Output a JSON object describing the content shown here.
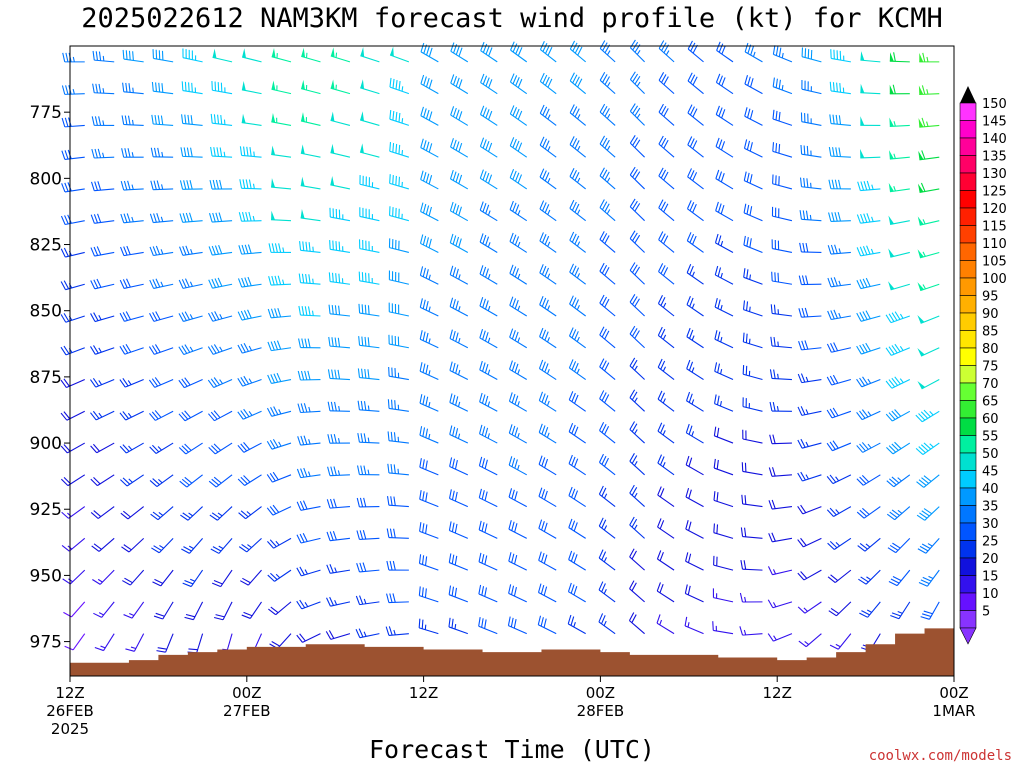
{
  "chart_data": {
    "type": "wind-barb-time-height",
    "title": "2025022612 NAM3KM forecast wind profile (kt) for KCMH",
    "xlabel": "Forecast Time (UTC)",
    "ylabel": "",
    "units": "kt",
    "credit": "coolwx.com/models",
    "x_range_hours": [
      0,
      36
    ],
    "y_range_hpa": [
      750,
      988
    ],
    "y_ticks": [
      {
        "label": "775",
        "value": 775
      },
      {
        "label": "800",
        "value": 800
      },
      {
        "label": "825",
        "value": 825
      },
      {
        "label": "850",
        "value": 850
      },
      {
        "label": "875",
        "value": 875
      },
      {
        "label": "900",
        "value": 900
      },
      {
        "label": "925",
        "value": 925
      },
      {
        "label": "950",
        "value": 950
      },
      {
        "label": "975",
        "value": 975
      }
    ],
    "x_ticks": [
      {
        "hour": 0,
        "lines": [
          "12Z",
          "26FEB",
          "2025"
        ]
      },
      {
        "hour": 7.2,
        "lines": [
          "00Z",
          "27FEB"
        ]
      },
      {
        "hour": 14.4,
        "lines": [
          "12Z"
        ]
      },
      {
        "hour": 21.6,
        "lines": [
          "00Z",
          "28FEB"
        ]
      },
      {
        "hour": 28.8,
        "lines": [
          "12Z"
        ]
      },
      {
        "hour": 36,
        "lines": [
          "00Z",
          "1MAR"
        ]
      }
    ],
    "colorbar_labels": [
      "150",
      "145",
      "140",
      "135",
      "130",
      "125",
      "120",
      "115",
      "110",
      "105",
      "100",
      "95",
      "90",
      "85",
      "80",
      "75",
      "70",
      "65",
      "60",
      "55",
      "50",
      "45",
      "40",
      "35",
      "30",
      "25",
      "20",
      "15",
      "10",
      "5"
    ],
    "colorbar_colors": [
      "#ff33ff",
      "#ff00cc",
      "#ff0099",
      "#ff0066",
      "#ff0033",
      "#ff0000",
      "#ff2000",
      "#ff4000",
      "#ff6600",
      "#ff8000",
      "#ff9900",
      "#ffb000",
      "#ffcc00",
      "#ffe600",
      "#ffff00",
      "#ccff33",
      "#66ff33",
      "#33ee33",
      "#00dd44",
      "#00f0a0",
      "#00e0d0",
      "#00ccff",
      "#0099ff",
      "#0077ff",
      "#0055ff",
      "#0033ee",
      "#1111dd",
      "#3311ee",
      "#6611ff",
      "#8833ff"
    ],
    "levels_hpa": [
      756,
      768,
      780,
      792,
      804,
      816,
      828,
      840,
      852,
      864,
      876,
      888,
      900,
      912,
      924,
      936,
      948,
      960,
      972
    ],
    "barb_times_hours": [
      0.6,
      1.8,
      3.0,
      4.2,
      5.4,
      6.6,
      7.8,
      9.0,
      10.2,
      11.4,
      12.6,
      13.8,
      15.0,
      16.2,
      17.4,
      18.6,
      19.8,
      21.0,
      22.2,
      23.4,
      24.6,
      25.8,
      27.0,
      28.2,
      29.4,
      30.6,
      31.8,
      33.0,
      34.2,
      35.4
    ],
    "wind_profile": [
      {
        "hour": 0.6,
        "surface_hpa": 983,
        "dir_sfc": 205,
        "dir_top": 270,
        "spd_sfc": 7,
        "spd_top": 34
      },
      {
        "hour": 1.8,
        "surface_hpa": 983,
        "dir_sfc": 200,
        "dir_top": 275,
        "spd_sfc": 10,
        "spd_top": 36
      },
      {
        "hour": 3.0,
        "surface_hpa": 982,
        "dir_sfc": 195,
        "dir_top": 278,
        "spd_sfc": 13,
        "spd_top": 38
      },
      {
        "hour": 4.2,
        "surface_hpa": 980,
        "dir_sfc": 190,
        "dir_top": 280,
        "spd_sfc": 16,
        "spd_top": 40
      },
      {
        "hour": 5.4,
        "surface_hpa": 979,
        "dir_sfc": 185,
        "dir_top": 282,
        "spd_sfc": 17,
        "spd_top": 44
      },
      {
        "hour": 6.6,
        "surface_hpa": 978,
        "dir_sfc": 185,
        "dir_top": 283,
        "spd_sfc": 15,
        "spd_top": 48
      },
      {
        "hour": 7.8,
        "surface_hpa": 977,
        "dir_sfc": 195,
        "dir_top": 284,
        "spd_sfc": 14,
        "spd_top": 52
      },
      {
        "hour": 9.0,
        "surface_hpa": 977,
        "dir_sfc": 215,
        "dir_top": 285,
        "spd_sfc": 16,
        "spd_top": 56
      },
      {
        "hour": 10.2,
        "surface_hpa": 976,
        "dir_sfc": 240,
        "dir_top": 286,
        "spd_sfc": 18,
        "spd_top": 56
      },
      {
        "hour": 11.4,
        "surface_hpa": 976,
        "dir_sfc": 250,
        "dir_top": 287,
        "spd_sfc": 20,
        "spd_top": 54
      },
      {
        "hour": 12.6,
        "surface_hpa": 977,
        "dir_sfc": 255,
        "dir_top": 288,
        "spd_sfc": 22,
        "spd_top": 52
      },
      {
        "hour": 13.8,
        "surface_hpa": 977,
        "dir_sfc": 262,
        "dir_top": 290,
        "spd_sfc": 24,
        "spd_top": 48
      },
      {
        "hour": 15.0,
        "surface_hpa": 978,
        "dir_sfc": 285,
        "dir_top": 300,
        "spd_sfc": 25,
        "spd_top": 42
      },
      {
        "hour": 16.2,
        "surface_hpa": 978,
        "dir_sfc": 288,
        "dir_top": 302,
        "spd_sfc": 26,
        "spd_top": 42
      },
      {
        "hour": 17.4,
        "surface_hpa": 979,
        "dir_sfc": 290,
        "dir_top": 304,
        "spd_sfc": 27,
        "spd_top": 40
      },
      {
        "hour": 18.6,
        "surface_hpa": 979,
        "dir_sfc": 292,
        "dir_top": 306,
        "spd_sfc": 28,
        "spd_top": 40
      },
      {
        "hour": 19.8,
        "surface_hpa": 978,
        "dir_sfc": 295,
        "dir_top": 308,
        "spd_sfc": 28,
        "spd_top": 38
      },
      {
        "hour": 21.0,
        "surface_hpa": 978,
        "dir_sfc": 298,
        "dir_top": 310,
        "spd_sfc": 26,
        "spd_top": 38
      },
      {
        "hour": 22.2,
        "surface_hpa": 979,
        "dir_sfc": 305,
        "dir_top": 312,
        "spd_sfc": 22,
        "spd_top": 36
      },
      {
        "hour": 23.4,
        "surface_hpa": 980,
        "dir_sfc": 310,
        "dir_top": 315,
        "spd_sfc": 18,
        "spd_top": 34
      },
      {
        "hour": 24.6,
        "surface_hpa": 980,
        "dir_sfc": 300,
        "dir_top": 312,
        "spd_sfc": 16,
        "spd_top": 33
      },
      {
        "hour": 25.8,
        "surface_hpa": 980,
        "dir_sfc": 290,
        "dir_top": 310,
        "spd_sfc": 15,
        "spd_top": 32
      },
      {
        "hour": 27.0,
        "surface_hpa": 981,
        "dir_sfc": 275,
        "dir_top": 305,
        "spd_sfc": 14,
        "spd_top": 32
      },
      {
        "hour": 28.2,
        "surface_hpa": 981,
        "dir_sfc": 260,
        "dir_top": 300,
        "spd_sfc": 13,
        "spd_top": 33
      },
      {
        "hour": 29.4,
        "surface_hpa": 982,
        "dir_sfc": 240,
        "dir_top": 292,
        "spd_sfc": 12,
        "spd_top": 34
      },
      {
        "hour": 30.6,
        "surface_hpa": 981,
        "dir_sfc": 220,
        "dir_top": 285,
        "spd_sfc": 12,
        "spd_top": 38
      },
      {
        "hour": 31.8,
        "surface_hpa": 979,
        "dir_sfc": 210,
        "dir_top": 280,
        "spd_sfc": 14,
        "spd_top": 44
      },
      {
        "hour": 33.0,
        "surface_hpa": 976,
        "dir_sfc": 205,
        "dir_top": 275,
        "spd_sfc": 18,
        "spd_top": 52
      },
      {
        "hour": 34.2,
        "surface_hpa": 972,
        "dir_sfc": 200,
        "dir_top": 272,
        "spd_sfc": 22,
        "spd_top": 60
      },
      {
        "hour": 35.4,
        "surface_hpa": 970,
        "dir_sfc": 198,
        "dir_top": 270,
        "spd_sfc": 26,
        "spd_top": 66
      }
    ],
    "terrain_color": "#9c5230"
  }
}
